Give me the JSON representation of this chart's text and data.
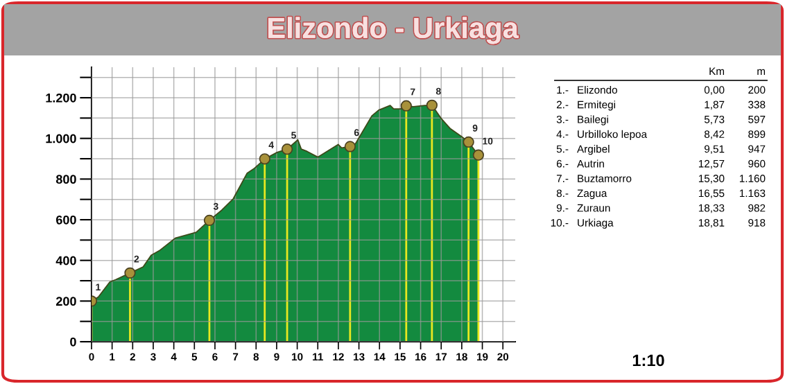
{
  "chart_data": {
    "type": "area",
    "title": "Elizondo - Urkiaga",
    "series": [
      {
        "color": "#138a3f",
        "x": [
          0,
          0.33,
          0.89,
          1.17,
          1.87,
          2.51,
          2.9,
          3.3,
          4.08,
          5.09,
          5.73,
          6.33,
          6.89,
          7.56,
          7.9,
          8.42,
          9.02,
          9.51,
          10.03,
          10.2,
          10.48,
          11.0,
          11.99,
          12.16,
          12.57,
          12.84,
          13.63,
          13.96,
          14.52,
          14.69,
          15.03,
          15.3,
          15.65,
          16.2,
          16.55,
          16.99,
          17.44,
          18.0,
          18.33,
          18.81
        ],
        "values": [
          200,
          220,
          294,
          305,
          338,
          368,
          425,
          448,
          510,
          538,
          597,
          647,
          703,
          828,
          851,
          899,
          931,
          947,
          993,
          947,
          936,
          908,
          970,
          953,
          960,
          975,
          1111,
          1139,
          1162,
          1145,
          1145,
          1160,
          1156,
          1162,
          1163,
          1099,
          1048,
          1008,
          982,
          918
        ]
      },
      {
        "type": "lollipop",
        "color": "#e8e820",
        "colors": [
          "#a8913a",
          "#a8913a",
          "#a8913a",
          "#a8913a",
          "#a8913a",
          "#a8913a",
          "#a8913a",
          "#a8913a",
          "#a8913a",
          "#a8913a"
        ],
        "marker": "circle",
        "x": [
          0,
          1.87,
          5.73,
          8.42,
          9.51,
          12.57,
          15.3,
          16.55,
          18.33,
          18.81
        ],
        "values": [
          200,
          338,
          597,
          899,
          947,
          960,
          1160,
          1163,
          982,
          918
        ]
      }
    ],
    "xlim": [
      0,
      20.6
    ],
    "xticks": [
      0,
      1,
      2,
      3,
      4,
      5,
      6,
      7,
      8,
      9,
      10,
      11,
      12,
      13,
      14,
      15,
      16,
      17,
      18,
      19,
      20
    ],
    "ylim": [
      0,
      1350
    ],
    "yticks": [
      0,
      {
        "value": 100,
        "label": null
      },
      200,
      {
        "value": 300,
        "label": null
      },
      400,
      {
        "value": 500,
        "label": null
      },
      600,
      {
        "value": 700,
        "label": null
      },
      800,
      {
        "value": 900,
        "label": null
      },
      {
        "value": 1000,
        "label": "1.000"
      },
      {
        "value": 1100,
        "label": null
      },
      {
        "value": 1200,
        "label": "1.200"
      },
      {
        "value": 1300,
        "label": null
      }
    ],
    "grid": true,
    "annotations": [
      {
        "text": "1",
        "x": 0,
        "y": 200
      },
      {
        "text": "2",
        "x": 1.87,
        "y": 338
      },
      {
        "text": "3",
        "x": 5.73,
        "y": 597
      },
      {
        "text": "4",
        "x": 8.42,
        "y": 899
      },
      {
        "text": "5",
        "x": 9.51,
        "y": 947
      },
      {
        "text": "6",
        "x": 12.57,
        "y": 960
      },
      {
        "text": "7",
        "x": 15.3,
        "y": 1160
      },
      {
        "text": "8",
        "x": 16.55,
        "y": 1163
      },
      {
        "text": "9",
        "x": 18.33,
        "y": 982
      },
      {
        "text": "10",
        "x": 18.81,
        "y": 918
      },
      "Km",
      "m",
      "1.-",
      "Elizondo",
      "0,00",
      "200",
      "2.-",
      "Ermitegi",
      "1,87",
      "338",
      "3.-",
      "Bailegi",
      "5,73",
      "597",
      "4.-",
      "Urbilloko lepoa",
      "8,42",
      "899",
      "5.-",
      "Argibel",
      "9,51",
      "947",
      "6.-",
      "Autrin",
      "12,57",
      "960",
      "7.-",
      "Buztamorro",
      "15,30",
      "1.160",
      "8.-",
      "Zagua",
      "16,55",
      "1.163",
      "9.-",
      "Zuraun",
      "18,33",
      "982",
      "10.-",
      "Urkiaga",
      "18,81",
      "918",
      "1:10"
    ]
  }
}
